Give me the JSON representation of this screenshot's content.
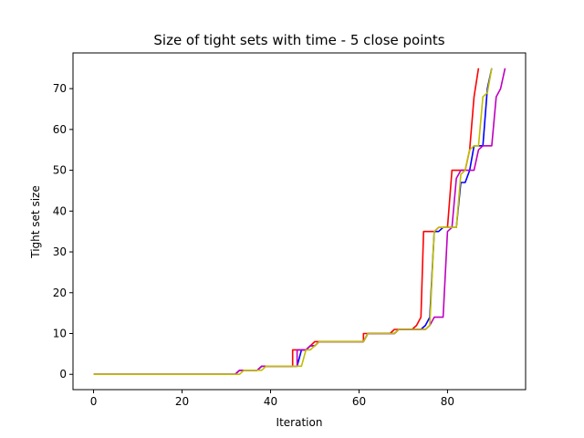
{
  "chart_data": {
    "type": "line",
    "title": "Size of tight sets with time - 5 close points",
    "xlabel": "Iteration",
    "ylabel": "Tight set size",
    "xlim": [
      -4.65,
      97.65
    ],
    "ylim": [
      -3.75,
      78.75
    ],
    "xticks": [
      0,
      20,
      40,
      60,
      80
    ],
    "yticks": [
      0,
      10,
      20,
      30,
      40,
      50,
      60,
      70
    ],
    "grid": false,
    "legend": "none",
    "series": [
      {
        "color": "#ff0000",
        "points": [
          [
            0,
            0
          ],
          [
            32,
            0
          ],
          [
            33,
            1
          ],
          [
            37,
            1
          ],
          [
            38,
            2
          ],
          [
            45,
            2
          ],
          [
            45,
            6
          ],
          [
            48,
            6
          ],
          [
            49,
            7
          ],
          [
            50,
            8
          ],
          [
            61,
            8
          ],
          [
            61,
            10
          ],
          [
            67,
            10
          ],
          [
            68,
            11
          ],
          [
            72,
            11
          ],
          [
            73,
            12
          ],
          [
            74,
            14
          ],
          [
            74.6,
            35
          ],
          [
            77,
            35
          ],
          [
            78,
            36
          ],
          [
            80,
            36
          ],
          [
            81,
            50
          ],
          [
            84,
            50
          ],
          [
            85,
            55
          ],
          [
            86,
            68
          ],
          [
            87,
            75
          ]
        ]
      },
      {
        "color": "#0000ff",
        "points": [
          [
            0,
            0
          ],
          [
            32,
            0
          ],
          [
            33,
            1
          ],
          [
            37,
            1
          ],
          [
            38,
            2
          ],
          [
            46,
            2
          ],
          [
            47,
            6
          ],
          [
            48,
            6
          ],
          [
            49,
            7
          ],
          [
            50,
            7
          ],
          [
            51,
            8
          ],
          [
            61,
            8
          ],
          [
            62,
            10
          ],
          [
            68,
            10
          ],
          [
            69,
            11
          ],
          [
            74,
            11
          ],
          [
            75,
            12
          ],
          [
            76,
            14
          ],
          [
            77,
            35
          ],
          [
            78,
            35
          ],
          [
            79,
            36
          ],
          [
            82,
            36
          ],
          [
            83,
            47
          ],
          [
            84,
            47
          ],
          [
            85,
            50
          ],
          [
            86,
            56
          ],
          [
            88,
            56
          ],
          [
            89,
            70
          ],
          [
            90,
            75
          ]
        ]
      },
      {
        "color": "#bf00bf",
        "points": [
          [
            0,
            0
          ],
          [
            32,
            0
          ],
          [
            33,
            1
          ],
          [
            37,
            1
          ],
          [
            38,
            2
          ],
          [
            46,
            2
          ],
          [
            46,
            6
          ],
          [
            48,
            6
          ],
          [
            49,
            7
          ],
          [
            50,
            7
          ],
          [
            51,
            8
          ],
          [
            61,
            8
          ],
          [
            62,
            10
          ],
          [
            68,
            10
          ],
          [
            69,
            11
          ],
          [
            75,
            11
          ],
          [
            76,
            12
          ],
          [
            77,
            14
          ],
          [
            79,
            14
          ],
          [
            80,
            35
          ],
          [
            81,
            36
          ],
          [
            82,
            48
          ],
          [
            83,
            50
          ],
          [
            86,
            50
          ],
          [
            87,
            55
          ],
          [
            88,
            56
          ],
          [
            90,
            56
          ],
          [
            91,
            68
          ],
          [
            92,
            70
          ],
          [
            93,
            75
          ]
        ]
      },
      {
        "color": "#bfbf00",
        "points": [
          [
            0,
            0
          ],
          [
            33,
            0
          ],
          [
            34,
            1
          ],
          [
            38,
            1
          ],
          [
            39,
            2
          ],
          [
            47,
            2
          ],
          [
            48,
            6
          ],
          [
            49,
            6
          ],
          [
            50,
            7
          ],
          [
            51,
            8
          ],
          [
            61,
            8
          ],
          [
            62,
            10
          ],
          [
            68,
            10
          ],
          [
            69,
            11
          ],
          [
            75,
            11
          ],
          [
            76,
            12
          ],
          [
            77,
            35
          ],
          [
            78,
            36
          ],
          [
            82,
            36
          ],
          [
            83,
            49
          ],
          [
            84,
            50
          ],
          [
            85,
            55
          ],
          [
            86,
            56
          ],
          [
            87,
            56
          ],
          [
            88,
            68
          ],
          [
            89,
            69
          ],
          [
            90,
            75
          ]
        ]
      }
    ]
  }
}
